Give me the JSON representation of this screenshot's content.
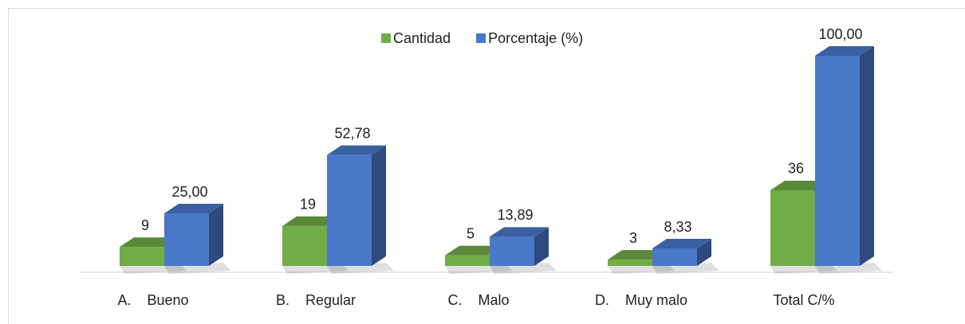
{
  "chart_data": {
    "type": "bar3d",
    "categories": [
      "A.    Bueno",
      "B.    Regular",
      "C.    Malo",
      "D.    Muy malo",
      "Total C/%"
    ],
    "series": [
      {
        "name": "Cantidad",
        "color": "#70ad47",
        "values": [
          9,
          19,
          5,
          3,
          36
        ]
      },
      {
        "name": "Porcentaje (%)",
        "color": "#4a78c9",
        "values": [
          25,
          52.78,
          13.89,
          8.33,
          100
        ],
        "value_labels": [
          "25,00",
          "52,78",
          "13,89",
          "8,33",
          "100,00"
        ]
      }
    ],
    "legend": "top"
  }
}
